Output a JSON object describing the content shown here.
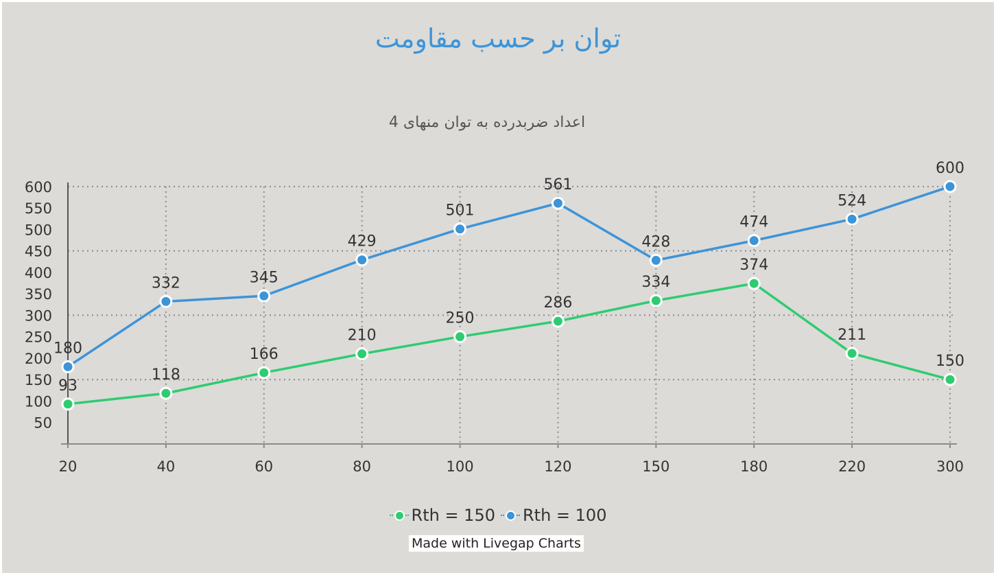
{
  "chart_data": {
    "type": "line",
    "title": "توان بر حسب مقاومت",
    "subtitle": "اعداد ضربدرده به توان منهای 4",
    "categories": [
      "20",
      "40",
      "60",
      "80",
      "100",
      "120",
      "150",
      "180",
      "220",
      "300"
    ],
    "y_ticks": [
      "50",
      "100",
      "150",
      "200",
      "250",
      "300",
      "350",
      "400",
      "450",
      "500",
      "550",
      "600"
    ],
    "ylim": [
      0,
      600
    ],
    "grid": true,
    "legend_position": "bottom",
    "series": [
      {
        "name": "Rth = 150",
        "color": "#2ecc71",
        "values": [
          93,
          118,
          166,
          210,
          250,
          286,
          334,
          374,
          211,
          150
        ]
      },
      {
        "name": "Rth = 100",
        "color": "#3c94d9",
        "values": [
          180,
          332,
          345,
          429,
          501,
          561,
          428,
          474,
          524,
          600
        ]
      }
    ]
  },
  "credit": "Made with Livegap Charts",
  "colors": {
    "background": "#dcdbd8",
    "title": "#3c94d9",
    "grid": "#8a8a8a"
  }
}
